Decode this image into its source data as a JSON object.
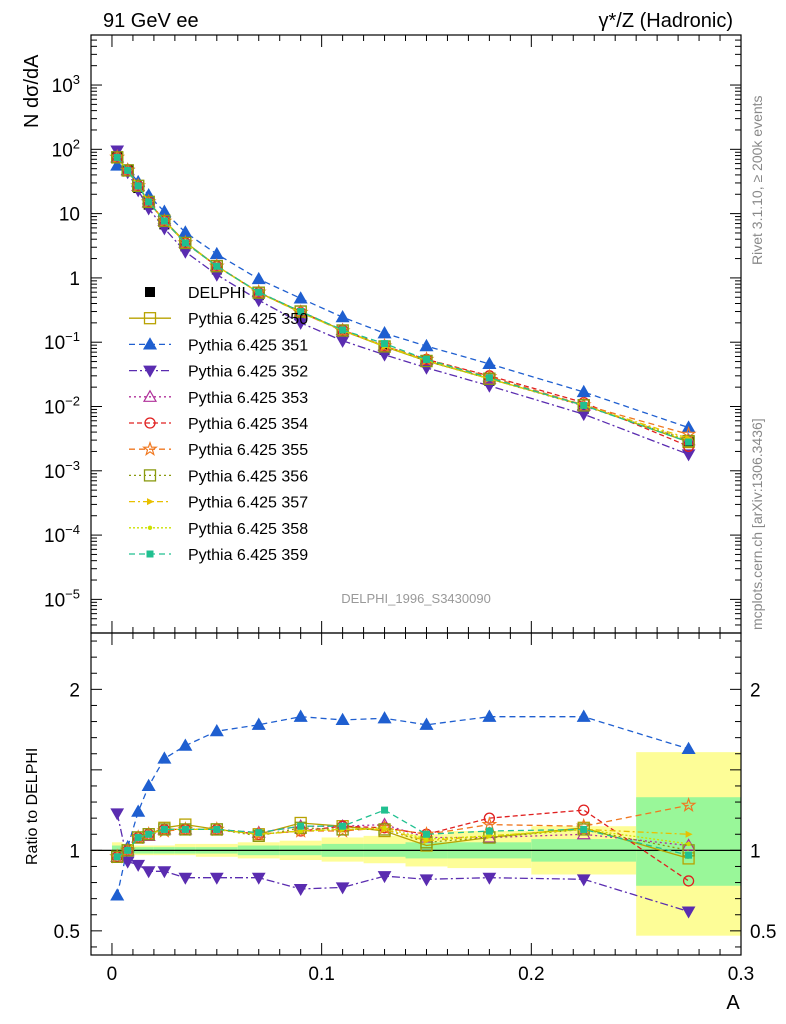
{
  "header": {
    "left_title": "91 GeV ee",
    "right_title": "γ*/Z (Hadronic)",
    "side_label_top": "Rivet 3.1.10, ≥ 200k events",
    "side_label_bottom": "mcplots.cern.ch [arXiv:1306.3436]",
    "analysis_id": "DELPHI_1996_S3430090"
  },
  "chart_data": [
    {
      "type": "scatter",
      "panel": "main",
      "ylabel": "N dσ/dA",
      "xlabel": "A",
      "yscale": "log",
      "xlim": [
        -0.01,
        0.3
      ],
      "ylim": [
        3e-06,
        6000
      ],
      "y_ticks": [
        {
          "value": 1e-05,
          "base": "10",
          "exp": "−5"
        },
        {
          "value": 0.0001,
          "base": "10",
          "exp": "−4"
        },
        {
          "value": 0.001,
          "base": "10",
          "exp": "−3"
        },
        {
          "value": 0.01,
          "base": "10",
          "exp": "−2"
        },
        {
          "value": 0.1,
          "base": "10",
          "exp": "−1"
        },
        {
          "value": 1,
          "base": "1",
          "exp": ""
        },
        {
          "value": 10,
          "base": "10",
          "exp": ""
        },
        {
          "value": 100,
          "base": "10",
          "exp": "2"
        },
        {
          "value": 1000,
          "base": "10",
          "exp": "3"
        }
      ],
      "legend_position": "left-middle",
      "x": [
        0.0025,
        0.0075,
        0.0125,
        0.0175,
        0.025,
        0.035,
        0.05,
        0.07,
        0.09,
        0.11,
        0.13,
        0.15,
        0.18,
        0.225,
        0.275
      ],
      "series": [
        {
          "name": "DELPHI",
          "color": "#000000",
          "marker": "square-filled",
          "dash": "none",
          "values": [
            78,
            47,
            25,
            13.8,
            6.8,
            3.1,
            1.35,
            0.54,
            0.26,
            0.135,
            0.076,
            0.049,
            0.025,
            0.0092,
            0.0029
          ]
        },
        {
          "name": "Pythia 6.425 350",
          "color": "#b8a200",
          "marker": "square-open",
          "dash": "none",
          "values": [
            75,
            47,
            27,
            15.2,
            7.8,
            3.6,
            1.53,
            0.59,
            0.3,
            0.152,
            0.085,
            0.051,
            0.027,
            0.0105,
            0.0028
          ]
        },
        {
          "name": "Pythia 6.425 351",
          "color": "#1f5fd0",
          "marker": "triangle-up-filled",
          "dash": "6,4",
          "values": [
            56,
            48,
            31,
            19.3,
            10.7,
            5.1,
            2.35,
            0.96,
            0.48,
            0.245,
            0.138,
            0.087,
            0.046,
            0.0168,
            0.0047
          ]
        },
        {
          "name": "Pythia 6.425 352",
          "color": "#5a2cb0",
          "marker": "triangle-down-filled",
          "dash": "8,3,2,3",
          "values": [
            96,
            44,
            23,
            12,
            5.9,
            2.55,
            1.12,
            0.45,
            0.2,
            0.105,
            0.064,
            0.04,
            0.021,
            0.0076,
            0.0018
          ]
        },
        {
          "name": "Pythia 6.425 353",
          "color": "#b0309a",
          "marker": "triangle-up-open",
          "dash": "2,3",
          "values": [
            75,
            47,
            27,
            15,
            7.7,
            3.5,
            1.53,
            0.6,
            0.3,
            0.155,
            0.088,
            0.053,
            0.027,
            0.0102,
            0.003
          ]
        },
        {
          "name": "Pythia 6.425 354",
          "color": "#e02020",
          "marker": "circle-open",
          "dash": "5,3",
          "values": [
            75,
            47,
            27,
            15.2,
            7.7,
            3.5,
            1.52,
            0.59,
            0.29,
            0.155,
            0.087,
            0.054,
            0.03,
            0.0115,
            0.0024
          ]
        },
        {
          "name": "Pythia 6.425 355",
          "color": "#f07820",
          "marker": "star-open",
          "dash": "6,4",
          "values": [
            75,
            47,
            27,
            15.2,
            7.6,
            3.5,
            1.52,
            0.6,
            0.29,
            0.15,
            0.087,
            0.054,
            0.029,
            0.0106,
            0.0037
          ]
        },
        {
          "name": "Pythia 6.425 356",
          "color": "#8a9a10",
          "marker": "square-open",
          "dash": "2,3",
          "values": [
            75,
            47,
            27,
            15.2,
            7.7,
            3.5,
            1.52,
            0.59,
            0.3,
            0.152,
            0.086,
            0.051,
            0.027,
            0.0104,
            0.0029
          ]
        },
        {
          "name": "Pythia 6.425 357",
          "color": "#e8c000",
          "marker": "triangle-right-filled",
          "dash": "6,3,2,3",
          "values": [
            75,
            47,
            27,
            15.2,
            7.7,
            3.5,
            1.52,
            0.59,
            0.29,
            0.152,
            0.086,
            0.052,
            0.027,
            0.0104,
            0.0032
          ]
        },
        {
          "name": "Pythia 6.425 358",
          "color": "#cce000",
          "marker": "dot-filled",
          "dash": "2,2",
          "values": [
            75,
            47,
            27,
            15.2,
            7.7,
            3.5,
            1.52,
            0.59,
            0.29,
            0.152,
            0.087,
            0.052,
            0.027,
            0.0104,
            0.003
          ]
        },
        {
          "name": "Pythia 6.425 359",
          "color": "#20c090",
          "marker": "square-filled-small",
          "dash": "6,4",
          "values": [
            75,
            47,
            27,
            15.2,
            7.7,
            3.5,
            1.52,
            0.6,
            0.3,
            0.155,
            0.095,
            0.054,
            0.028,
            0.0104,
            0.0028
          ]
        }
      ]
    },
    {
      "type": "scatter",
      "panel": "ratio",
      "ylabel": "Ratio to DELPHI",
      "xlabel": "A",
      "xlim": [
        -0.01,
        0.3
      ],
      "ylim": [
        0.35,
        2.35
      ],
      "y_ticks": [
        0.5,
        1,
        2
      ],
      "x_ticks": [
        0,
        0.1,
        0.2,
        0.3
      ],
      "x_tick_labels": [
        "0",
        "0.1",
        "0.2",
        "0.3"
      ],
      "reference_bands": [
        {
          "x_low": 0.0,
          "x_high": 0.005,
          "stat_low": 0.97,
          "stat_high": 1.03,
          "tot_low": 0.95,
          "tot_high": 1.05
        },
        {
          "x_low": 0.005,
          "x_high": 0.01,
          "stat_low": 0.98,
          "stat_high": 1.02,
          "tot_low": 0.96,
          "tot_high": 1.04
        },
        {
          "x_low": 0.01,
          "x_high": 0.02,
          "stat_low": 0.98,
          "stat_high": 1.02,
          "tot_low": 0.97,
          "tot_high": 1.03
        },
        {
          "x_low": 0.02,
          "x_high": 0.03,
          "stat_low": 0.98,
          "stat_high": 1.02,
          "tot_low": 0.97,
          "tot_high": 1.03
        },
        {
          "x_low": 0.03,
          "x_high": 0.04,
          "stat_low": 0.98,
          "stat_high": 1.02,
          "tot_low": 0.97,
          "tot_high": 1.04
        },
        {
          "x_low": 0.04,
          "x_high": 0.06,
          "stat_low": 0.98,
          "stat_high": 1.02,
          "tot_low": 0.96,
          "tot_high": 1.04
        },
        {
          "x_low": 0.06,
          "x_high": 0.08,
          "stat_low": 0.97,
          "stat_high": 1.03,
          "tot_low": 0.95,
          "tot_high": 1.05
        },
        {
          "x_low": 0.08,
          "x_high": 0.1,
          "stat_low": 0.97,
          "stat_high": 1.03,
          "tot_low": 0.94,
          "tot_high": 1.06
        },
        {
          "x_low": 0.1,
          "x_high": 0.12,
          "stat_low": 0.96,
          "stat_high": 1.04,
          "tot_low": 0.93,
          "tot_high": 1.08
        },
        {
          "x_low": 0.12,
          "x_high": 0.14,
          "stat_low": 0.96,
          "stat_high": 1.04,
          "tot_low": 0.92,
          "tot_high": 1.09
        },
        {
          "x_low": 0.14,
          "x_high": 0.16,
          "stat_low": 0.95,
          "stat_high": 1.05,
          "tot_low": 0.9,
          "tot_high": 1.1
        },
        {
          "x_low": 0.16,
          "x_high": 0.2,
          "stat_low": 0.95,
          "stat_high": 1.05,
          "tot_low": 0.89,
          "tot_high": 1.12
        },
        {
          "x_low": 0.2,
          "x_high": 0.25,
          "stat_low": 0.93,
          "stat_high": 1.07,
          "tot_low": 0.85,
          "tot_high": 1.15
        },
        {
          "x_low": 0.25,
          "x_high": 0.3,
          "stat_low": 0.78,
          "stat_high": 1.33,
          "tot_low": 0.47,
          "tot_high": 1.61
        }
      ],
      "band_colors": {
        "stat": "#99f799",
        "tot": "#fdfd97"
      },
      "series_ratio": [
        [
          1.0,
          1.0,
          1.0,
          1.0,
          1.0,
          1.0,
          1.0,
          1.0,
          1.0,
          1.0,
          1.0,
          1.0,
          1.0,
          1.0,
          1.0
        ],
        [
          0.96,
          1.0,
          1.08,
          1.1,
          1.14,
          1.16,
          1.13,
          1.1,
          1.17,
          1.15,
          1.12,
          1.03,
          1.08,
          1.14,
          0.95
        ],
        [
          0.72,
          1.02,
          1.24,
          1.4,
          1.57,
          1.65,
          1.74,
          1.78,
          1.83,
          1.81,
          1.82,
          1.78,
          1.83,
          1.83,
          1.63
        ],
        [
          1.23,
          0.93,
          0.91,
          0.87,
          0.87,
          0.83,
          0.83,
          0.83,
          0.76,
          0.77,
          0.84,
          0.82,
          0.83,
          0.82,
          0.62
        ],
        [
          0.96,
          1.0,
          1.08,
          1.09,
          1.13,
          1.13,
          1.13,
          1.11,
          1.15,
          1.15,
          1.16,
          1.08,
          1.08,
          1.1,
          1.03
        ],
        [
          0.96,
          1.0,
          1.08,
          1.1,
          1.13,
          1.13,
          1.13,
          1.1,
          1.12,
          1.15,
          1.14,
          1.1,
          1.2,
          1.25,
          0.81
        ],
        [
          0.96,
          1.0,
          1.08,
          1.1,
          1.12,
          1.13,
          1.13,
          1.1,
          1.12,
          1.12,
          1.14,
          1.1,
          1.16,
          1.15,
          1.28
        ],
        [
          0.96,
          1.0,
          1.08,
          1.1,
          1.13,
          1.13,
          1.13,
          1.09,
          1.14,
          1.13,
          1.13,
          1.05,
          1.08,
          1.13,
          1.0
        ],
        [
          0.96,
          1.0,
          1.08,
          1.1,
          1.13,
          1.13,
          1.13,
          1.1,
          1.12,
          1.13,
          1.13,
          1.06,
          1.09,
          1.13,
          1.1
        ],
        [
          0.96,
          1.0,
          1.08,
          1.1,
          1.13,
          1.13,
          1.13,
          1.1,
          1.12,
          1.13,
          1.14,
          1.07,
          1.09,
          1.13,
          1.04
        ],
        [
          0.96,
          1.0,
          1.08,
          1.1,
          1.13,
          1.13,
          1.13,
          1.11,
          1.15,
          1.15,
          1.25,
          1.1,
          1.12,
          1.13,
          0.97
        ]
      ]
    }
  ]
}
